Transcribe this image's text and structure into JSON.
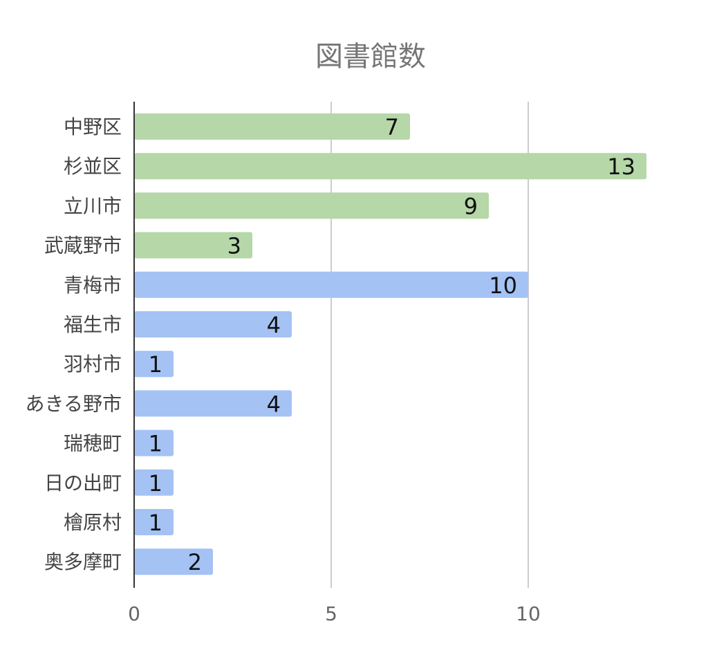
{
  "chart_data": {
    "type": "bar",
    "orientation": "horizontal",
    "title": "図書館数",
    "xlabel": "",
    "ylabel": "",
    "categories": [
      "中野区",
      "杉並区",
      "立川市",
      "武蔵野市",
      "青梅市",
      "福生市",
      "羽村市",
      "あきる野市",
      "瑞穂町",
      "日の出町",
      "檜原村",
      "奥多摩町"
    ],
    "values": [
      7,
      13,
      9,
      3,
      10,
      4,
      1,
      4,
      1,
      1,
      1,
      2
    ],
    "bar_colors": [
      "#b6d7a8",
      "#b6d7a8",
      "#b6d7a8",
      "#b6d7a8",
      "#a4c2f4",
      "#a4c2f4",
      "#a4c2f4",
      "#a4c2f4",
      "#a4c2f4",
      "#a4c2f4",
      "#a4c2f4",
      "#a4c2f4"
    ],
    "x_ticks": [
      0,
      5,
      10
    ],
    "xlim": [
      0,
      13
    ],
    "grid": true,
    "legend": "none"
  }
}
